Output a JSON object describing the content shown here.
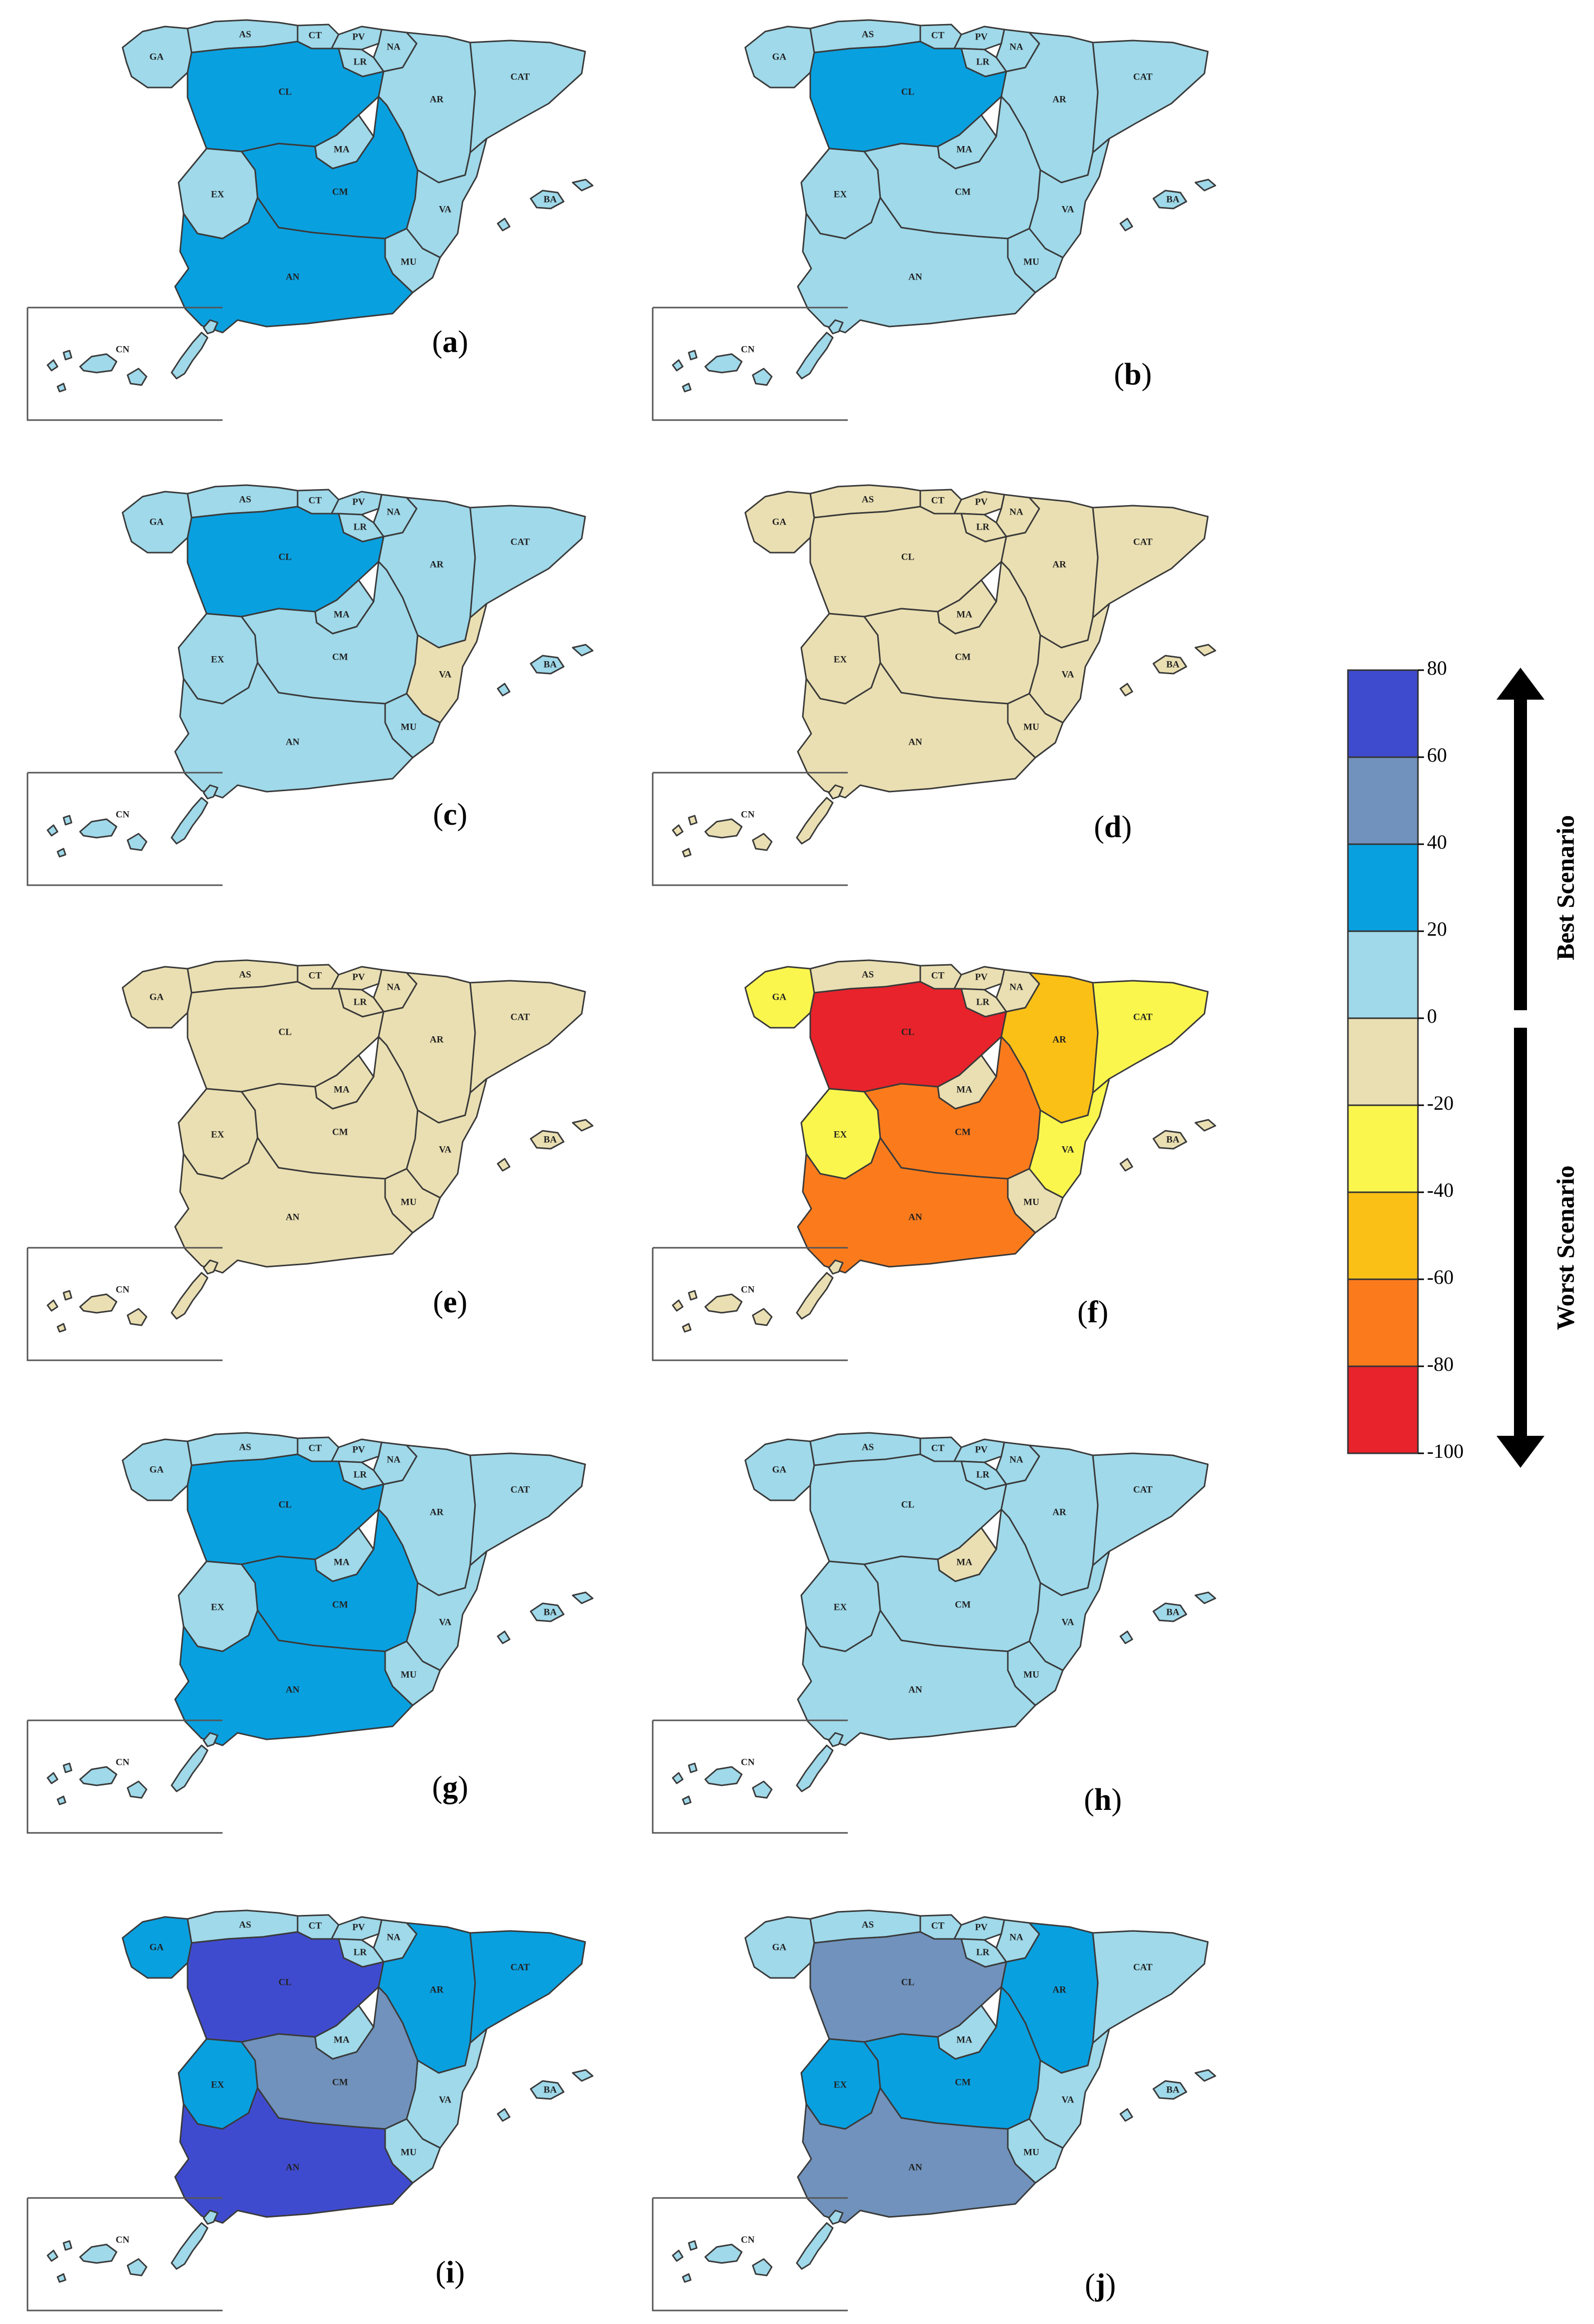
{
  "legend": {
    "ticks": [
      "80",
      "60",
      "40",
      "20",
      "0",
      "-20",
      "-40",
      "-60",
      "-80",
      "-100"
    ],
    "bins": [
      {
        "from": 60,
        "to": 80,
        "color": "#3f4bcf"
      },
      {
        "from": 40,
        "to": 60,
        "color": "#7092bc"
      },
      {
        "from": 20,
        "to": 40,
        "color": "#09a0e0"
      },
      {
        "from": 0,
        "to": 20,
        "color": "#9fd9ea"
      },
      {
        "from": -20,
        "to": 0,
        "color": "#eadfb2"
      },
      {
        "from": -40,
        "to": -20,
        "color": "#fbf64d"
      },
      {
        "from": -60,
        "to": -40,
        "color": "#fbc016"
      },
      {
        "from": -80,
        "to": -60,
        "color": "#fb7b1c"
      },
      {
        "from": -100,
        "to": -80,
        "color": "#e8232b"
      }
    ],
    "best_label": "Best Scenario",
    "worst_label": "Worst Scenario"
  },
  "regions": [
    "GA",
    "AS",
    "CT",
    "PV",
    "NA",
    "LR",
    "CL",
    "AR",
    "CAT",
    "MA",
    "EX",
    "CM",
    "VA",
    "MU",
    "AN",
    "BA",
    "CN"
  ],
  "panels": [
    {
      "label": "a",
      "classes": {
        "GA": 4,
        "AS": 4,
        "CT": 4,
        "PV": 4,
        "NA": 4,
        "LR": 4,
        "CL": 3,
        "AR": 4,
        "CAT": 4,
        "MA": 4,
        "EX": 4,
        "CM": 3,
        "VA": 4,
        "MU": 4,
        "AN": 3,
        "BA": 4,
        "CN": 4
      }
    },
    {
      "label": "b",
      "classes": {
        "GA": 4,
        "AS": 4,
        "CT": 4,
        "PV": 4,
        "NA": 4,
        "LR": 4,
        "CL": 3,
        "AR": 4,
        "CAT": 4,
        "MA": 4,
        "EX": 4,
        "CM": 4,
        "VA": 4,
        "MU": 4,
        "AN": 4,
        "BA": 4,
        "CN": 4
      }
    },
    {
      "label": "c",
      "classes": {
        "GA": 4,
        "AS": 4,
        "CT": 4,
        "PV": 4,
        "NA": 4,
        "LR": 4,
        "CL": 3,
        "AR": 4,
        "CAT": 4,
        "MA": 4,
        "EX": 4,
        "CM": 4,
        "VA": 5,
        "MU": 4,
        "AN": 4,
        "BA": 4,
        "CN": 4
      }
    },
    {
      "label": "d",
      "classes": {
        "GA": 5,
        "AS": 5,
        "CT": 5,
        "PV": 5,
        "NA": 5,
        "LR": 5,
        "CL": 5,
        "AR": 5,
        "CAT": 5,
        "MA": 5,
        "EX": 5,
        "CM": 5,
        "VA": 5,
        "MU": 5,
        "AN": 5,
        "BA": 5,
        "CN": 5
      }
    },
    {
      "label": "e",
      "classes": {
        "GA": 5,
        "AS": 5,
        "CT": 5,
        "PV": 5,
        "NA": 5,
        "LR": 5,
        "CL": 5,
        "AR": 5,
        "CAT": 5,
        "MA": 5,
        "EX": 5,
        "CM": 5,
        "VA": 5,
        "MU": 5,
        "AN": 5,
        "BA": 5,
        "CN": 5
      }
    },
    {
      "label": "f",
      "classes": {
        "GA": 6,
        "AS": 5,
        "CT": 5,
        "PV": 5,
        "NA": 5,
        "LR": 5,
        "CL": 9,
        "AR": 7,
        "CAT": 6,
        "MA": 5,
        "EX": 6,
        "CM": 8,
        "VA": 6,
        "MU": 5,
        "AN": 8,
        "BA": 5,
        "CN": 5
      }
    },
    {
      "label": "g",
      "classes": {
        "GA": 4,
        "AS": 4,
        "CT": 4,
        "PV": 4,
        "NA": 4,
        "LR": 4,
        "CL": 3,
        "AR": 4,
        "CAT": 4,
        "MA": 4,
        "EX": 4,
        "CM": 3,
        "VA": 4,
        "MU": 4,
        "AN": 3,
        "BA": 4,
        "CN": 4
      }
    },
    {
      "label": "h",
      "classes": {
        "GA": 4,
        "AS": 4,
        "CT": 4,
        "PV": 4,
        "NA": 4,
        "LR": 4,
        "CL": 4,
        "AR": 4,
        "CAT": 4,
        "MA": 5,
        "EX": 4,
        "CM": 4,
        "VA": 4,
        "MU": 4,
        "AN": 4,
        "BA": 4,
        "CN": 4
      }
    },
    {
      "label": "i",
      "classes": {
        "GA": 3,
        "AS": 4,
        "CT": 4,
        "PV": 4,
        "NA": 4,
        "LR": 4,
        "CL": 1,
        "AR": 3,
        "CAT": 3,
        "MA": 4,
        "EX": 3,
        "CM": 2,
        "VA": 4,
        "MU": 4,
        "AN": 1,
        "BA": 4,
        "CN": 4
      }
    },
    {
      "label": "j",
      "classes": {
        "GA": 4,
        "AS": 4,
        "CT": 4,
        "PV": 4,
        "NA": 4,
        "LR": 4,
        "CL": 2,
        "AR": 3,
        "CAT": 4,
        "MA": 4,
        "EX": 3,
        "CM": 3,
        "VA": 4,
        "MU": 4,
        "AN": 2,
        "BA": 4,
        "CN": 4
      }
    }
  ]
}
